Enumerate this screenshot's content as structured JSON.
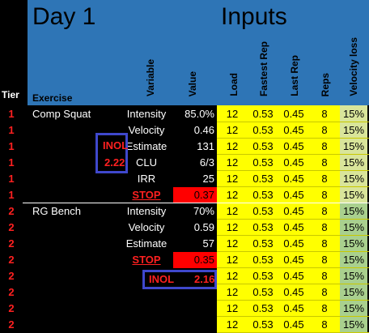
{
  "header": {
    "day_title": "Day 1",
    "inputs_title": "Inputs",
    "tier": "Tier",
    "exercise": "Exercise",
    "variable": "Variable",
    "value": "Value",
    "load": "Load",
    "fastest_rep": "Fastest Rep",
    "last_rep": "Last Rep",
    "reps": "Reps",
    "velocity_loss": "Velocity loss"
  },
  "rows": [
    {
      "tier": "1",
      "exercise": "Comp Squat",
      "variable": "Intensity",
      "value": "85.0%",
      "load": "12",
      "fastest": "0.53",
      "last": "0.45",
      "reps": "8",
      "vloss": "15%"
    },
    {
      "tier": "1",
      "exercise": "",
      "variable": "Velocity",
      "value": "0.46",
      "load": "12",
      "fastest": "0.53",
      "last": "0.45",
      "reps": "8",
      "vloss": "15%"
    },
    {
      "tier": "1",
      "exercise": "",
      "variable": "Estimate",
      "value": "131",
      "load": "12",
      "fastest": "0.53",
      "last": "0.45",
      "reps": "8",
      "vloss": "15%"
    },
    {
      "tier": "1",
      "exercise": "",
      "variable": "CLU",
      "value": "6/3",
      "load": "12",
      "fastest": "0.53",
      "last": "0.45",
      "reps": "8",
      "vloss": "15%"
    },
    {
      "tier": "1",
      "exercise": "",
      "variable": "IRR",
      "value": "25",
      "load": "12",
      "fastest": "0.53",
      "last": "0.45",
      "reps": "8",
      "vloss": "15%"
    },
    {
      "tier": "1",
      "exercise": "",
      "variable": "STOP",
      "value": "0.37",
      "load": "12",
      "fastest": "0.53",
      "last": "0.45",
      "reps": "8",
      "vloss": "15%"
    },
    {
      "tier": "2",
      "exercise": "RG Bench",
      "variable": "Intensity",
      "value": "70%",
      "load": "12",
      "fastest": "0.53",
      "last": "0.45",
      "reps": "8",
      "vloss": "15%"
    },
    {
      "tier": "2",
      "exercise": "",
      "variable": "Velocity",
      "value": "0.59",
      "load": "12",
      "fastest": "0.53",
      "last": "0.45",
      "reps": "8",
      "vloss": "15%"
    },
    {
      "tier": "2",
      "exercise": "",
      "variable": "Estimate",
      "value": "57",
      "load": "12",
      "fastest": "0.53",
      "last": "0.45",
      "reps": "8",
      "vloss": "15%"
    },
    {
      "tier": "2",
      "exercise": "",
      "variable": "STOP",
      "value": "0.35",
      "load": "12",
      "fastest": "0.53",
      "last": "0.45",
      "reps": "8",
      "vloss": "15%"
    },
    {
      "tier": "2",
      "exercise": "",
      "variable": "",
      "value": "",
      "load": "12",
      "fastest": "0.53",
      "last": "0.45",
      "reps": "8",
      "vloss": "15%"
    },
    {
      "tier": "2",
      "exercise": "",
      "variable": "",
      "value": "",
      "load": "12",
      "fastest": "0.53",
      "last": "0.45",
      "reps": "8",
      "vloss": "15%"
    },
    {
      "tier": "2",
      "exercise": "",
      "variable": "",
      "value": "",
      "load": "12",
      "fastest": "0.53",
      "last": "0.45",
      "reps": "8",
      "vloss": "15%"
    },
    {
      "tier": "2",
      "exercise": "",
      "variable": "",
      "value": "",
      "load": "12",
      "fastest": "0.53",
      "last": "0.45",
      "reps": "8",
      "vloss": "15%"
    }
  ],
  "inol_squat": {
    "label": "INOL",
    "value": "2.22"
  },
  "inol_bench": {
    "label": "INOL",
    "value": "2.16"
  },
  "colors": {
    "header_blue": "#2e75b6",
    "input_yellow": "#ffff00",
    "velocity_green": "#a9d08e",
    "alert_red": "#ff0000",
    "inol_box": "#3f48cc"
  }
}
